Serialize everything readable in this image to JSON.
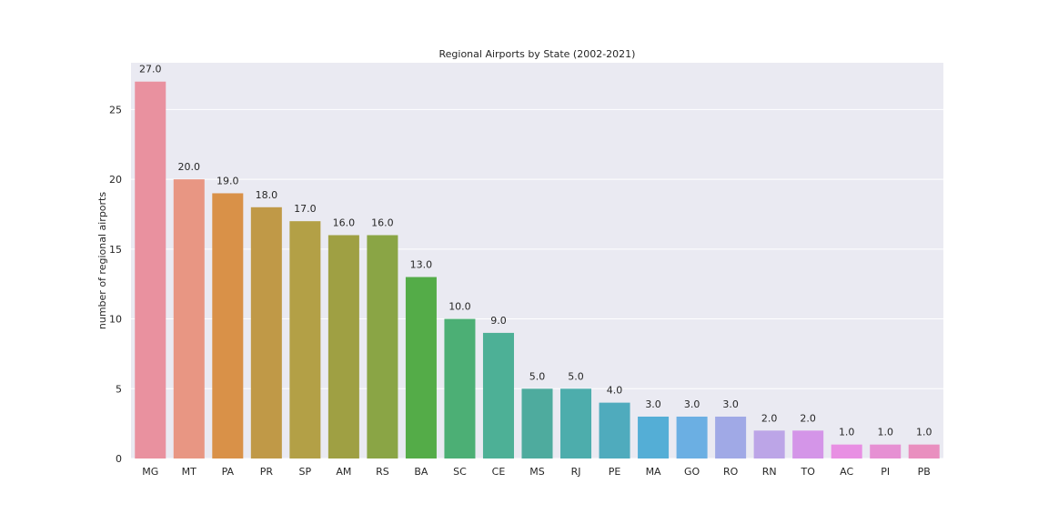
{
  "chart_data": {
    "type": "bar",
    "title": "Regional Airports by State (2002-2021)",
    "xlabel": "",
    "ylabel": "number of regional airports",
    "categories": [
      "MG",
      "MT",
      "PA",
      "PR",
      "SP",
      "AM",
      "RS",
      "BA",
      "SC",
      "CE",
      "MS",
      "RJ",
      "PE",
      "MA",
      "GO",
      "RO",
      "RN",
      "TO",
      "AC",
      "PI",
      "PB"
    ],
    "values": [
      27,
      20,
      19,
      18,
      17,
      16,
      16,
      13,
      10,
      9,
      5,
      5,
      4,
      3,
      3,
      3,
      2,
      2,
      1,
      1,
      1
    ],
    "data_labels": [
      "27.0",
      "20.0",
      "19.0",
      "18.0",
      "17.0",
      "16.0",
      "16.0",
      "13.0",
      "10.0",
      "9.0",
      "5.0",
      "5.0",
      "4.0",
      "3.0",
      "3.0",
      "3.0",
      "2.0",
      "2.0",
      "1.0",
      "1.0",
      "1.0"
    ],
    "colors": [
      "#e9919f",
      "#e89683",
      "#d99148",
      "#c09947",
      "#b3a046",
      "#9fa043",
      "#8aa545",
      "#54ac48",
      "#4caf75",
      "#4db096",
      "#4eab9e",
      "#4dadac",
      "#4fabbd",
      "#54aed6",
      "#6bafe3",
      "#a0a9e6",
      "#bca5e7",
      "#d495e8",
      "#e88fe3",
      "#e690d3",
      "#e98fbf"
    ],
    "yticks": [
      0,
      5,
      10,
      15,
      20,
      25
    ],
    "ylim": [
      0,
      28.35
    ],
    "grid": true,
    "background": "#eaeaf2",
    "grid_color": "#ffffff"
  }
}
